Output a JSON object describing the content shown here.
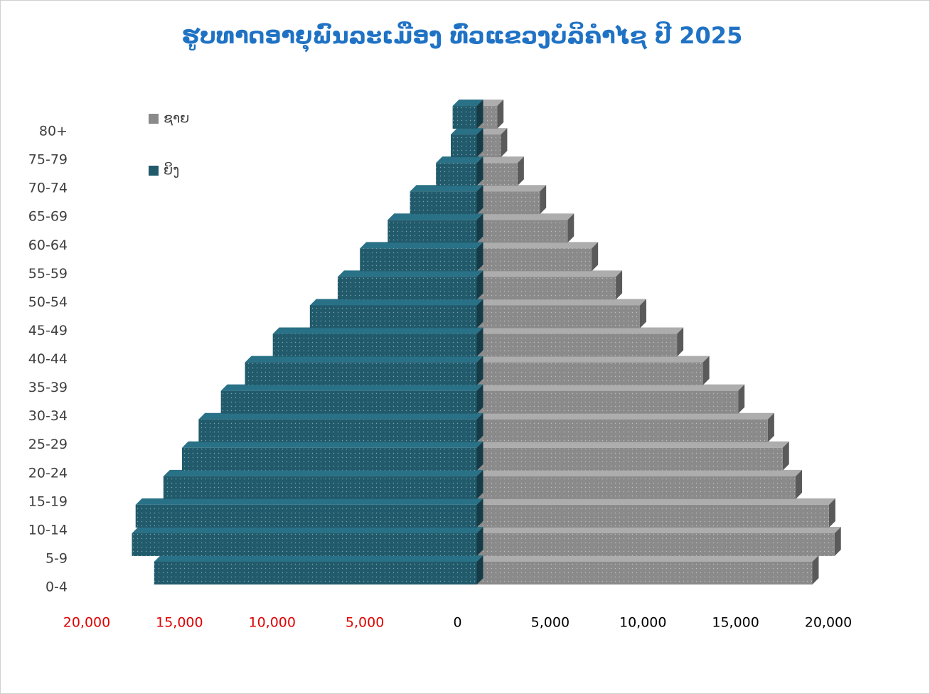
{
  "chart_data": {
    "type": "pyramid",
    "title": "ຮູບທາດອາຍຸພົນລະເມືອງ ທົ່ວແຂວງບໍລິຄໍາໄຊ ປີ 2025",
    "categories": [
      "0-4",
      "5-9",
      "10-14",
      "15-19",
      "20-24",
      "25-29",
      "30-34",
      "35-39",
      "40-44",
      "45-49",
      "50-54",
      "55-59",
      "60-64",
      "65-69",
      "70-74",
      "75-79",
      "80+"
    ],
    "series": [
      {
        "name": "ຊາຍ",
        "color": "#8a8a8a",
        "values": [
          18100,
          19300,
          19000,
          17200,
          16500,
          15700,
          14100,
          12200,
          10800,
          8800,
          7500,
          6200,
          4900,
          3400,
          2200,
          1300,
          1100
        ]
      },
      {
        "name": "ຍິງ",
        "color": "#215a6b",
        "values": [
          -17400,
          -18600,
          -18400,
          -16900,
          -15900,
          -15000,
          -13800,
          -12500,
          -11000,
          -9000,
          -7500,
          -6300,
          -4800,
          -3600,
          -2200,
          -1400,
          -1300
        ]
      }
    ],
    "xlim": [
      -20000,
      20000
    ],
    "xticks": [
      {
        "value": -20000,
        "label": "20,000"
      },
      {
        "value": -15000,
        "label": "15,000"
      },
      {
        "value": -10000,
        "label": "10,000"
      },
      {
        "value": -5000,
        "label": "5,000"
      },
      0,
      {
        "value": 5000,
        "label": "5,000"
      },
      {
        "value": 10000,
        "label": "10,000"
      },
      {
        "value": 15000,
        "label": "15,000"
      },
      {
        "value": 20000,
        "label": "20,000"
      }
    ]
  }
}
